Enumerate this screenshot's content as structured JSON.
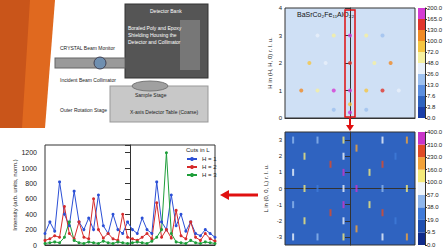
{
  "diagram": {
    "labels": [
      [
        "Detector Bank"
      ],
      [
        "Boraled Poly and Epoxy",
        "Shielding Housing the",
        "Detector and Collimator"
      ],
      [
        "CRYSTAL Beam Monitor"
      ],
      [
        "Incident Beam Collimator"
      ],
      [
        "Sample Stage"
      ],
      [
        "Outer Rotation Stage"
      ],
      [
        "X-axis Detector Table (Coarse)"
      ]
    ]
  },
  "chart_data": [
    {
      "type": "line",
      "title": "Cuts in L",
      "ylabel": "Intensity (arb. units, norm.)",
      "x": [
        -3.5,
        -3.3,
        -3.1,
        -2.9,
        -2.7,
        -2.5,
        -2.3,
        -2.1,
        -1.9,
        -1.7,
        -1.5,
        -1.3,
        -1.1,
        -0.9,
        -0.7,
        -0.5,
        -0.3,
        -0.1,
        0.1,
        0.3,
        0.5,
        0.7,
        0.9,
        1.1,
        1.3,
        1.5,
        1.7,
        1.9,
        2.1,
        2.3,
        2.5,
        2.7,
        2.9,
        3.1,
        3.3,
        3.5
      ],
      "series": [
        {
          "name": "H = 1",
          "color": "#2b4fd6",
          "values": [
            150,
            300,
            180,
            820,
            400,
            250,
            700,
            300,
            200,
            350,
            200,
            650,
            250,
            150,
            400,
            200,
            150,
            300,
            200,
            150,
            350,
            200,
            150,
            820,
            300,
            200,
            650,
            250,
            400,
            180,
            300,
            150,
            120,
            200,
            150,
            100
          ]
        },
        {
          "name": "H = 2",
          "color": "#d62b2b",
          "values": [
            60,
            80,
            120,
            100,
            500,
            150,
            80,
            300,
            100,
            80,
            600,
            200,
            90,
            150,
            80,
            60,
            400,
            100,
            80,
            60,
            100,
            150,
            80,
            550,
            100,
            200,
            90,
            450,
            120,
            80,
            300,
            100,
            60,
            150,
            80,
            50
          ]
        },
        {
          "name": "H = 3",
          "color": "#1e9e3a",
          "values": [
            20,
            30,
            40,
            30,
            100,
            300,
            60,
            30,
            20,
            40,
            30,
            20,
            50,
            30,
            20,
            40,
            30,
            20,
            30,
            40,
            30,
            20,
            50,
            100,
            200,
            1200,
            150,
            40,
            30,
            20,
            60,
            30,
            20,
            40,
            30,
            20
          ]
        }
      ],
      "xlim": [
        -3.5,
        3.5
      ],
      "ylim": [
        0,
        1300
      ],
      "yticks": [
        0,
        200,
        400,
        600,
        800,
        1000,
        1200
      ],
      "tick_labels": "y",
      "legend": "upper right",
      "marker": "circle"
    },
    {
      "type": "scatter",
      "title": "BaSrCo₂Fe₁₁AlO₂₂",
      "ylabel": "H in (H, H, 0) r. l. u.",
      "points": [
        [
          -3,
          1,
          120
        ],
        [
          -2,
          1,
          60
        ],
        [
          -1,
          1,
          190
        ],
        [
          0,
          1,
          180
        ],
        [
          1,
          1,
          90
        ],
        [
          2,
          1,
          140
        ],
        [
          3,
          1,
          40
        ],
        [
          -2.5,
          2,
          80
        ],
        [
          -1.5,
          2,
          30
        ],
        [
          0,
          2,
          160
        ],
        [
          1.5,
          2,
          50
        ],
        [
          2.5,
          2,
          100
        ],
        [
          -2,
          3,
          40
        ],
        [
          -1,
          3,
          70
        ],
        [
          0,
          3,
          195
        ],
        [
          1,
          3,
          60
        ],
        [
          2,
          3,
          20
        ],
        [
          -1,
          0.3,
          20
        ],
        [
          0,
          0.2,
          190
        ],
        [
          1,
          0.3,
          15
        ],
        [
          0,
          0.5,
          72
        ]
      ],
      "xlim": [
        -4,
        4
      ],
      "ylim": [
        0,
        4
      ],
      "yticks": [
        0,
        1,
        2,
        3,
        4
      ],
      "tick_labels": "y",
      "colorbar": {
        "ticks": [
          {
            "value": 0,
            "label": "0.0"
          },
          3.8,
          7.6,
          {
            "value": 13,
            "label": "13.0"
          },
          {
            "value": 26,
            "label": "26.0"
          },
          {
            "value": 48,
            "label": "48.0"
          },
          {
            "value": 72,
            "label": "72.0"
          },
          {
            "value": 100,
            "label": "100.0"
          },
          {
            "value": 130,
            "label": "130.0"
          },
          {
            "value": 165,
            "label": "165.0"
          },
          {
            "value": 200,
            "label": "200.0"
          }
        ],
        "colors": [
          "#1a3da8",
          "#2f63c0",
          "#5c8fe0",
          "#9dc0ef",
          "#e8f0fa",
          "#f5f0a0",
          "#f5c542",
          "#f08a24",
          "#e0352b",
          "#d43bd4"
        ]
      }
    },
    {
      "type": "scatter",
      "ylabel": "L in (0, 0, L) r. l. u.",
      "points": [
        [
          -3.5,
          -3,
          60
        ],
        [
          -3.5,
          -1,
          40
        ],
        [
          -3.5,
          1,
          60
        ],
        [
          -3.5,
          3,
          40
        ],
        [
          -2.8,
          -2,
          150
        ],
        [
          -2.8,
          0,
          100
        ],
        [
          -2.8,
          2,
          150
        ],
        [
          -2,
          -3,
          40
        ],
        [
          -2,
          0,
          20
        ],
        [
          -2,
          3,
          40
        ],
        [
          -1.2,
          -1.5,
          230
        ],
        [
          -1.2,
          1.5,
          230
        ],
        [
          -0.4,
          -3,
          100
        ],
        [
          -0.4,
          -2,
          60
        ],
        [
          -0.4,
          -1,
          310
        ],
        [
          -0.4,
          0,
          80
        ],
        [
          -0.4,
          1,
          310
        ],
        [
          -0.4,
          2,
          60
        ],
        [
          -0.4,
          3,
          100
        ],
        [
          0.4,
          -2.5,
          160
        ],
        [
          0.4,
          0,
          390
        ],
        [
          0.4,
          2.5,
          160
        ],
        [
          1.2,
          -1,
          100
        ],
        [
          1.2,
          1,
          100
        ],
        [
          2,
          -3,
          57
        ],
        [
          2,
          -1.5,
          230
        ],
        [
          2,
          0,
          38
        ],
        [
          2,
          1.5,
          230
        ],
        [
          2,
          3,
          57
        ],
        [
          2.8,
          -2,
          19
        ],
        [
          2.8,
          2,
          19
        ],
        [
          3.5,
          -3,
          160
        ],
        [
          3.5,
          0,
          100
        ],
        [
          3.5,
          3,
          160
        ]
      ],
      "xlim": [
        -4,
        4
      ],
      "ylim": [
        -3.5,
        3.5
      ],
      "yticks": [
        -3,
        -2,
        -1,
        0,
        1,
        2,
        3
      ],
      "tick_labels": "y",
      "colorbar": {
        "ticks": [
          {
            "value": 0,
            "label": "0.0"
          },
          9.5,
          {
            "value": 19,
            "label": "19.0"
          },
          {
            "value": 38,
            "label": "38.0"
          },
          {
            "value": 57,
            "label": "57.0"
          },
          {
            "value": 100,
            "label": "100.0"
          },
          {
            "value": 160,
            "label": "160.0"
          },
          {
            "value": 230,
            "label": "230.0"
          },
          {
            "value": 310,
            "label": "310.0"
          },
          {
            "value": 400,
            "label": "400.0"
          }
        ],
        "colors": [
          "#0f2a8a",
          "#1f4fb0",
          "#3f7ad8",
          "#8fb6ec",
          "#eef4fb",
          "#f4ea7a",
          "#f2a23a",
          "#e04a25",
          "#c934c9"
        ]
      }
    }
  ]
}
